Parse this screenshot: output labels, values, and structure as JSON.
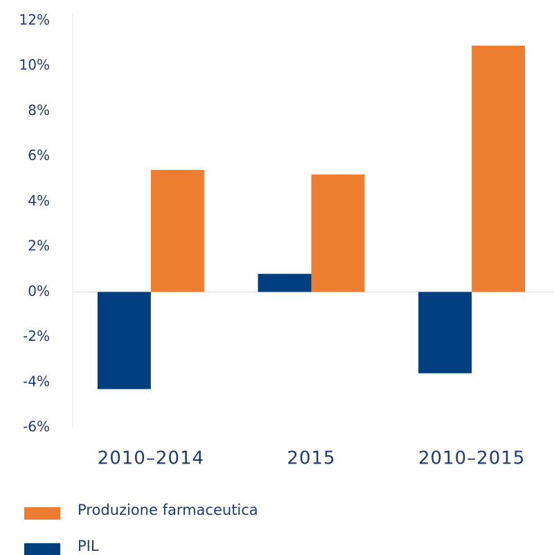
{
  "chart_data": {
    "type": "bar",
    "categories": [
      "2010–2014",
      "2015",
      "2010–2015"
    ],
    "series": [
      {
        "name": "PIL",
        "color": "#003f7f",
        "values": [
          -4.3,
          0.8,
          -3.6
        ]
      },
      {
        "name": "Produzione farmaceutica",
        "color": "#ed7d31",
        "values": [
          5.4,
          5.2,
          10.9
        ]
      }
    ],
    "ylim": [
      -6,
      12
    ],
    "yticks": [
      {
        "value": -6,
        "label": "-6%"
      },
      {
        "value": -4,
        "label": "-4%"
      },
      {
        "value": -2,
        "label": "-2%"
      },
      {
        "value": 0,
        "label": "0%"
      },
      {
        "value": 2,
        "label": "2%"
      },
      {
        "value": 4,
        "label": "4%"
      },
      {
        "value": 6,
        "label": "6%"
      },
      {
        "value": 8,
        "label": "8%"
      },
      {
        "value": 10,
        "label": "10%"
      },
      {
        "value": 12,
        "label": "12%"
      }
    ]
  }
}
